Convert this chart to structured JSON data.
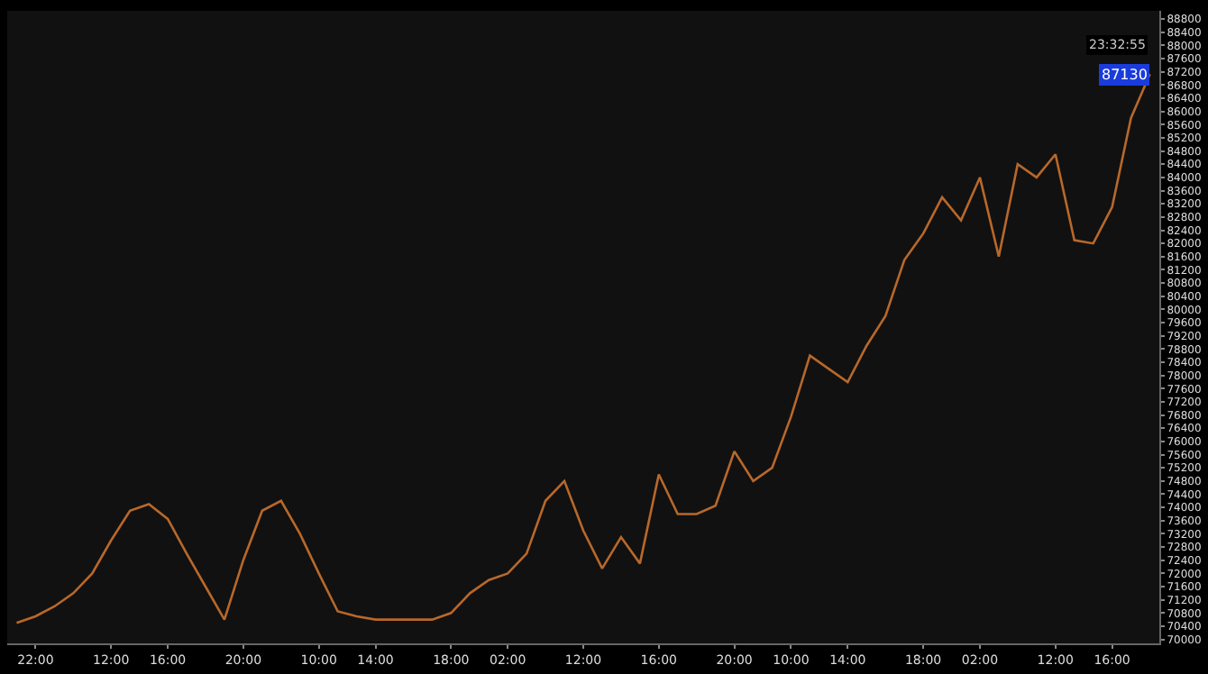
{
  "chart_data": {
    "type": "line",
    "categories": [
      null,
      "22:00",
      null,
      null,
      null,
      "12:00",
      null,
      null,
      "16:00",
      null,
      null,
      null,
      "20:00",
      null,
      null,
      null,
      "10:00",
      null,
      null,
      "14:00",
      null,
      null,
      null,
      "18:00",
      null,
      null,
      "02:00",
      null,
      null,
      null,
      "12:00",
      null,
      null,
      null,
      "16:00",
      null,
      null,
      null,
      "20:00",
      null,
      null,
      "10:00",
      null,
      null,
      "14:00",
      null,
      null,
      null,
      "18:00",
      null,
      null,
      "02:00",
      null,
      null,
      null,
      "12:00",
      null,
      null,
      "16:00",
      null,
      null
    ],
    "series": [
      {
        "color": "#b8682a",
        "values": [
          70500,
          70700,
          71000,
          71400,
          72000,
          73000,
          73900,
          74100,
          73650,
          72600,
          71600,
          70600,
          72400,
          73900,
          74200,
          73200,
          72000,
          70850,
          70700,
          70600,
          70600,
          70600,
          70600,
          70800,
          71400,
          71800,
          72000,
          72600,
          74200,
          74800,
          73300,
          72150,
          73100,
          72300,
          75000,
          73800,
          73800,
          74050,
          75700,
          74800,
          75200,
          76750,
          78600,
          78200,
          77800,
          78900,
          79800,
          81500,
          82300,
          83400,
          82700,
          84000,
          81600,
          84400,
          84000,
          84700,
          82100,
          82000,
          83100,
          85800,
          87130
        ]
      }
    ],
    "ylim": [
      69880,
      89050
    ],
    "yticks": [
      70000,
      70400,
      70800,
      71200,
      71600,
      72000,
      72400,
      72800,
      73200,
      73600,
      74000,
      74400,
      74800,
      75200,
      75600,
      76000,
      76400,
      76800,
      77200,
      77600,
      78000,
      78400,
      78800,
      79200,
      79600,
      80000,
      80400,
      80800,
      81200,
      81600,
      82000,
      82400,
      82800,
      83200,
      83600,
      84000,
      84400,
      84800,
      85200,
      85600,
      86000,
      86400,
      86800,
      87200,
      87600,
      88000,
      88400,
      88800
    ],
    "annotations": [
      {
        "text": "87130",
        "y": 87130
      },
      "23:32:55"
    ],
    "grid": false,
    "marker": "none",
    "line_style": "solid"
  }
}
